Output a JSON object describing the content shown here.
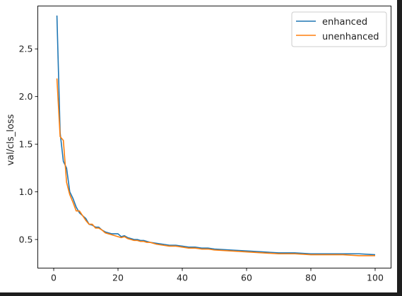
{
  "chart_data": {
    "type": "line",
    "title": "",
    "xlabel": "",
    "ylabel": "val/cls_loss",
    "xlim": [
      -4.95,
      104.95
    ],
    "ylim": [
      0.2,
      2.95
    ],
    "xticks": [
      0,
      20,
      40,
      60,
      80,
      100
    ],
    "xtick_labels": [
      "0",
      "20",
      "40",
      "60",
      "80",
      "100"
    ],
    "yticks": [
      0.5,
      1.0,
      1.5,
      2.0,
      2.5
    ],
    "ytick_labels": [
      "0.5",
      "1.0",
      "1.5",
      "2.0",
      "2.5"
    ],
    "grid": false,
    "legend_position": "top-right",
    "series": [
      {
        "name": "enhanced",
        "color": "#1f77b4",
        "x": [
          1,
          2,
          3,
          4,
          5,
          6,
          7,
          8,
          9,
          10,
          11,
          12,
          13,
          14,
          15,
          16,
          17,
          18,
          19,
          20,
          21,
          22,
          23,
          24,
          25,
          26,
          27,
          28,
          29,
          30,
          32,
          34,
          36,
          38,
          40,
          42,
          44,
          46,
          48,
          50,
          55,
          60,
          65,
          70,
          75,
          80,
          85,
          90,
          95,
          100
        ],
        "y": [
          2.85,
          1.62,
          1.32,
          1.25,
          1.0,
          0.93,
          0.84,
          0.78,
          0.75,
          0.72,
          0.66,
          0.65,
          0.63,
          0.63,
          0.6,
          0.58,
          0.57,
          0.56,
          0.56,
          0.56,
          0.53,
          0.54,
          0.52,
          0.51,
          0.5,
          0.5,
          0.49,
          0.49,
          0.48,
          0.47,
          0.46,
          0.45,
          0.44,
          0.44,
          0.43,
          0.42,
          0.42,
          0.41,
          0.41,
          0.4,
          0.39,
          0.38,
          0.37,
          0.36,
          0.36,
          0.35,
          0.35,
          0.35,
          0.35,
          0.34
        ]
      },
      {
        "name": "unenhanced",
        "color": "#ff7f0e",
        "x": [
          1,
          2,
          3,
          4,
          5,
          6,
          7,
          8,
          9,
          10,
          11,
          12,
          13,
          14,
          15,
          16,
          17,
          18,
          19,
          20,
          21,
          22,
          23,
          24,
          25,
          26,
          27,
          28,
          29,
          30,
          32,
          34,
          36,
          38,
          40,
          42,
          44,
          46,
          48,
          50,
          55,
          60,
          65,
          70,
          75,
          80,
          85,
          90,
          95,
          100
        ],
        "y": [
          2.19,
          1.58,
          1.54,
          1.1,
          0.97,
          0.89,
          0.8,
          0.8,
          0.75,
          0.7,
          0.66,
          0.66,
          0.62,
          0.62,
          0.6,
          0.57,
          0.56,
          0.55,
          0.54,
          0.53,
          0.52,
          0.53,
          0.51,
          0.5,
          0.49,
          0.49,
          0.48,
          0.48,
          0.47,
          0.47,
          0.45,
          0.44,
          0.43,
          0.43,
          0.42,
          0.41,
          0.41,
          0.4,
          0.4,
          0.39,
          0.38,
          0.37,
          0.36,
          0.35,
          0.35,
          0.34,
          0.34,
          0.34,
          0.33,
          0.33
        ]
      }
    ]
  }
}
